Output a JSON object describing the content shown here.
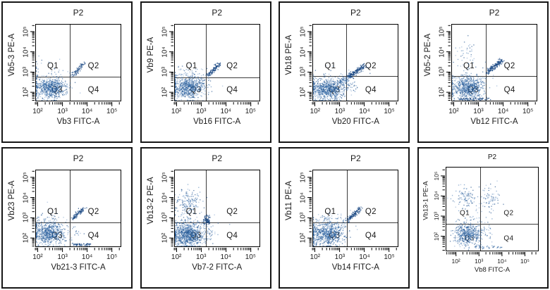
{
  "window": {
    "background": "#ffffff",
    "panel_border_color": "#161616",
    "gate_line_color": "#3c3c3c",
    "dot_color": "#2d67a8",
    "dot_color_dark": "#17467e",
    "text_color": "#1a1a1a"
  },
  "chart_data": [
    {
      "type": "scatter",
      "title": "P2",
      "xlabel": "Vb3 FITC-A",
      "ylabel": "Vb5-3 PE-A",
      "x_ticks": [
        "10²",
        "10³",
        "10⁴",
        "10⁵"
      ],
      "y_ticks": [
        "10²",
        "10³",
        "10⁴",
        "10⁵"
      ],
      "x_range_log": [
        1.9,
        5.38
      ],
      "y_range_log": [
        1.55,
        5.38
      ],
      "quadrants": [
        "Q1",
        "Q2",
        "Q3",
        "Q4"
      ],
      "gate": {
        "x_log": 3.3,
        "y_log": 2.77
      },
      "compact_style": false,
      "clusters": [
        {
          "kind": "blob",
          "name": "negative-population",
          "cx": 2.5,
          "cy": 2.18,
          "sx": 0.32,
          "sy": 0.26,
          "n": 620
        },
        {
          "kind": "blob",
          "name": "background-noise",
          "cx": 2.62,
          "cy": 2.5,
          "sx": 0.48,
          "sy": 0.42,
          "n": 55
        },
        {
          "kind": "blob",
          "name": "axis-edge-pileup",
          "cx": 1.93,
          "cy": 2.2,
          "sx": 0.035,
          "sy": 0.33,
          "n": 22
        },
        {
          "kind": "blob",
          "name": "left-edge-upper-scatter",
          "cx": 1.93,
          "cy": 3.3,
          "sx": 0.04,
          "sy": 0.35,
          "n": 10
        },
        {
          "kind": "blob",
          "name": "q1-stray-dots",
          "cx": 2.5,
          "cy": 3.1,
          "sx": 0.25,
          "sy": 0.2,
          "n": 12
        },
        {
          "kind": "streak",
          "name": "vb3-positive-streak",
          "x0": 3.38,
          "y0": 2.8,
          "x1": 3.9,
          "y1": 3.45,
          "w": 0.05,
          "n": 68,
          "dark": true
        }
      ]
    },
    {
      "type": "scatter",
      "title": "P2",
      "xlabel": "Vb16 FITC-A",
      "ylabel": "Vb9 PE-A",
      "x_ticks": [
        "10²",
        "10³",
        "10⁴",
        "10⁵"
      ],
      "y_ticks": [
        "10²",
        "10³",
        "10⁴",
        "10⁵"
      ],
      "x_range_log": [
        1.9,
        5.38
      ],
      "y_range_log": [
        1.55,
        5.38
      ],
      "quadrants": [
        "Q1",
        "Q2",
        "Q3",
        "Q4"
      ],
      "gate": {
        "x_log": 3.2,
        "y_log": 2.73
      },
      "compact_style": false,
      "clusters": [
        {
          "kind": "blob",
          "name": "negative-population",
          "cx": 2.45,
          "cy": 2.18,
          "sx": 0.32,
          "sy": 0.26,
          "n": 600
        },
        {
          "kind": "blob",
          "name": "upper-halo-scatter",
          "cx": 2.4,
          "cy": 2.8,
          "sx": 0.33,
          "sy": 0.28,
          "n": 70
        },
        {
          "kind": "blob",
          "name": "background-noise",
          "cx": 2.7,
          "cy": 2.45,
          "sx": 0.5,
          "sy": 0.4,
          "n": 50
        },
        {
          "kind": "blob",
          "name": "axis-edge-pileup",
          "cx": 1.93,
          "cy": 2.2,
          "sx": 0.035,
          "sy": 0.33,
          "n": 22
        },
        {
          "kind": "blob",
          "name": "gate-corner-dots",
          "cx": 3.05,
          "cy": 2.6,
          "sx": 0.12,
          "sy": 0.15,
          "n": 15
        },
        {
          "kind": "streak",
          "name": "vb16-positive-streak",
          "x0": 3.22,
          "y0": 2.8,
          "x1": 3.75,
          "y1": 3.4,
          "w": 0.055,
          "n": 100,
          "dark": true
        }
      ]
    },
    {
      "type": "scatter",
      "title": "P2",
      "xlabel": "Vb20 FITC-A",
      "ylabel": "Vb18 PE-A",
      "x_ticks": [
        "10²",
        "10³",
        "10⁴",
        "10⁵"
      ],
      "y_ticks": [
        "10²",
        "10³",
        "10⁴",
        "10⁵"
      ],
      "x_range_log": [
        1.9,
        5.38
      ],
      "y_range_log": [
        1.55,
        5.38
      ],
      "quadrants": [
        "Q1",
        "Q2",
        "Q3",
        "Q4"
      ],
      "gate": {
        "x_log": 3.25,
        "y_log": 2.8
      },
      "compact_style": false,
      "clusters": [
        {
          "kind": "blob",
          "name": "negative-population",
          "cx": 2.5,
          "cy": 2.12,
          "sx": 0.37,
          "sy": 0.27,
          "n": 680
        },
        {
          "kind": "blob",
          "name": "background-noise",
          "cx": 2.75,
          "cy": 2.45,
          "sx": 0.5,
          "sy": 0.4,
          "n": 60
        },
        {
          "kind": "blob",
          "name": "axis-edge-pileup",
          "cx": 1.93,
          "cy": 2.2,
          "sx": 0.035,
          "sy": 0.33,
          "n": 22
        },
        {
          "kind": "streak",
          "name": "bridge-scatter",
          "x0": 2.95,
          "y0": 2.42,
          "x1": 3.35,
          "y1": 2.72,
          "w": 0.13,
          "n": 85
        },
        {
          "kind": "streak",
          "name": "vb20-positive-streak",
          "x0": 3.35,
          "y0": 2.72,
          "x1": 4.02,
          "y1": 3.3,
          "w": 0.07,
          "n": 150,
          "dark": true
        },
        {
          "kind": "blob",
          "name": "q4-scatter",
          "cx": 3.4,
          "cy": 2.3,
          "sx": 0.2,
          "sy": 0.18,
          "n": 22
        }
      ]
    },
    {
      "type": "scatter",
      "title": "P2",
      "xlabel": "Vb12 FITC-A",
      "ylabel": "Vb5-2 PE-A",
      "x_ticks": [
        "10²",
        "10³",
        "10⁴",
        "10⁵"
      ],
      "y_ticks": [
        "10²",
        "10³",
        "10⁴",
        "10⁵"
      ],
      "x_range_log": [
        1.9,
        5.38
      ],
      "y_range_log": [
        1.55,
        5.38
      ],
      "quadrants": [
        "Q1",
        "Q2",
        "Q3",
        "Q4"
      ],
      "gate": {
        "x_log": 3.3,
        "y_log": 2.8
      },
      "compact_style": false,
      "clusters": [
        {
          "kind": "blob",
          "name": "negative-population",
          "cx": 2.55,
          "cy": 2.22,
          "sx": 0.3,
          "sy": 0.27,
          "n": 620
        },
        {
          "kind": "blob",
          "name": "background-noise",
          "cx": 2.6,
          "cy": 2.6,
          "sx": 0.45,
          "sy": 0.4,
          "n": 50
        },
        {
          "kind": "blob",
          "name": "axis-edge-pileup",
          "cx": 1.93,
          "cy": 2.2,
          "sx": 0.035,
          "sy": 0.33,
          "n": 22
        },
        {
          "kind": "blob",
          "name": "q1-sparse-cloud",
          "cx": 2.5,
          "cy": 3.85,
          "sx": 0.27,
          "sy": 0.33,
          "n": 40
        },
        {
          "kind": "streak",
          "name": "vb12-positive-streak",
          "x0": 3.35,
          "y0": 2.97,
          "x1": 3.95,
          "y1": 3.58,
          "w": 0.055,
          "n": 150,
          "dark": true
        },
        {
          "kind": "strip",
          "name": "bottom-axis-pileup",
          "x0": 2.15,
          "x1": 3.5,
          "y": 1.64,
          "n": 65,
          "dark": true
        },
        {
          "kind": "blob",
          "name": "gate-corner-dots",
          "cx": 3.15,
          "cy": 2.5,
          "sx": 0.15,
          "sy": 0.25,
          "n": 15
        }
      ]
    },
    {
      "type": "scatter",
      "title": "P2",
      "xlabel": "Vb21-3 FITC-A",
      "ylabel": "Vb23 PE-A",
      "x_ticks": [
        "10²",
        "10³",
        "10⁴",
        "10⁵"
      ],
      "y_ticks": [
        "10²",
        "10³",
        "10⁴",
        "10⁵"
      ],
      "x_range_log": [
        1.9,
        5.38
      ],
      "y_range_log": [
        1.55,
        5.38
      ],
      "quadrants": [
        "Q1",
        "Q2",
        "Q3",
        "Q4"
      ],
      "gate": {
        "x_log": 3.3,
        "y_log": 2.75
      },
      "compact_style": false,
      "clusters": [
        {
          "kind": "blob",
          "name": "negative-population",
          "cx": 2.45,
          "cy": 2.18,
          "sx": 0.32,
          "sy": 0.27,
          "n": 600
        },
        {
          "kind": "blob",
          "name": "upper-halo-scatter",
          "cx": 2.35,
          "cy": 2.75,
          "sx": 0.28,
          "sy": 0.25,
          "n": 55
        },
        {
          "kind": "blob",
          "name": "background-noise",
          "cx": 2.6,
          "cy": 2.5,
          "sx": 0.45,
          "sy": 0.4,
          "n": 45
        },
        {
          "kind": "blob",
          "name": "axis-edge-pileup",
          "cx": 1.93,
          "cy": 2.2,
          "sx": 0.035,
          "sy": 0.33,
          "n": 22
        },
        {
          "kind": "streak",
          "name": "vb21-3-positive-streak",
          "x0": 3.42,
          "y0": 2.95,
          "x1": 3.88,
          "y1": 3.48,
          "w": 0.05,
          "n": 85,
          "dark": true
        },
        {
          "kind": "strip",
          "name": "q4-bottom-axis-pileup",
          "x0": 3.35,
          "x1": 4.15,
          "y": 1.64,
          "n": 55,
          "dark": true
        },
        {
          "kind": "blob",
          "name": "q4-clump",
          "cx": 3.55,
          "cy": 2.28,
          "sx": 0.1,
          "sy": 0.1,
          "n": 10
        }
      ]
    },
    {
      "type": "scatter",
      "title": "P2",
      "xlabel": "Vb7-2 FITC-A",
      "ylabel": "Vb13-2 PE-A",
      "x_ticks": [
        "10²",
        "10³",
        "10⁴",
        "10⁵"
      ],
      "y_ticks": [
        "10²",
        "10³",
        "10⁴",
        "10⁵"
      ],
      "x_range_log": [
        1.9,
        5.38
      ],
      "y_range_log": [
        1.55,
        5.38
      ],
      "quadrants": [
        "Q1",
        "Q2",
        "Q3",
        "Q4"
      ],
      "gate": {
        "x_log": 3.2,
        "y_log": 2.77
      },
      "compact_style": false,
      "clusters": [
        {
          "kind": "blob",
          "name": "negative-population",
          "cx": 2.45,
          "cy": 2.12,
          "sx": 0.34,
          "sy": 0.29,
          "n": 850
        },
        {
          "kind": "blob",
          "name": "q1-positive-cloud",
          "cx": 2.45,
          "cy": 3.8,
          "sx": 0.26,
          "sy": 0.3,
          "n": 150
        },
        {
          "kind": "blob",
          "name": "bridge-scatter",
          "cx": 2.35,
          "cy": 3.0,
          "sx": 0.28,
          "sy": 0.3,
          "n": 45
        },
        {
          "kind": "blob",
          "name": "background-noise",
          "cx": 2.7,
          "cy": 2.4,
          "sx": 0.5,
          "sy": 0.35,
          "n": 50
        },
        {
          "kind": "blob",
          "name": "axis-edge-pileup",
          "cx": 1.93,
          "cy": 2.2,
          "sx": 0.035,
          "sy": 0.33,
          "n": 22
        },
        {
          "kind": "blob",
          "name": "gate-corner-clump",
          "cx": 3.22,
          "cy": 2.86,
          "sx": 0.08,
          "sy": 0.12,
          "n": 80,
          "dark": true
        },
        {
          "kind": "blob",
          "name": "q4-scatter",
          "cx": 3.45,
          "cy": 2.3,
          "sx": 0.18,
          "sy": 0.15,
          "n": 16
        }
      ]
    },
    {
      "type": "scatter",
      "title": "P2",
      "xlabel": "Vb14 FITC-A",
      "ylabel": "Vb11 PE-A",
      "x_ticks": [
        "10²",
        "10³",
        "10⁴",
        "10⁵"
      ],
      "y_ticks": [
        "10²",
        "10³",
        "10⁴",
        "10⁵"
      ],
      "x_range_log": [
        1.9,
        5.38
      ],
      "y_range_log": [
        1.55,
        5.38
      ],
      "quadrants": [
        "Q1",
        "Q2",
        "Q3",
        "Q4"
      ],
      "gate": {
        "x_log": 3.28,
        "y_log": 2.75
      },
      "compact_style": false,
      "clusters": [
        {
          "kind": "blob",
          "name": "negative-population",
          "cx": 2.45,
          "cy": 2.18,
          "sx": 0.34,
          "sy": 0.27,
          "n": 680
        },
        {
          "kind": "blob",
          "name": "background-noise",
          "cx": 2.65,
          "cy": 2.5,
          "sx": 0.48,
          "sy": 0.4,
          "n": 55
        },
        {
          "kind": "blob",
          "name": "axis-edge-pileup",
          "cx": 1.93,
          "cy": 2.2,
          "sx": 0.035,
          "sy": 0.33,
          "n": 22
        },
        {
          "kind": "blob",
          "name": "q1-low-scatter",
          "cx": 2.55,
          "cy": 2.95,
          "sx": 0.3,
          "sy": 0.18,
          "n": 30
        },
        {
          "kind": "streak",
          "name": "vb14-positive-streak",
          "x0": 3.35,
          "y0": 2.9,
          "x1": 3.82,
          "y1": 3.45,
          "w": 0.055,
          "n": 110,
          "dark": true
        },
        {
          "kind": "blob",
          "name": "gate-corner-dots",
          "cx": 3.2,
          "cy": 2.72,
          "sx": 0.1,
          "sy": 0.1,
          "n": 12
        }
      ]
    },
    {
      "type": "scatter",
      "title": "P2",
      "xlabel": "Vb8 FITC-A",
      "ylabel": "Vb13-1 PE-A",
      "x_ticks": [
        "10²",
        "10³",
        "10⁴",
        "10⁵"
      ],
      "y_ticks": [
        "10²",
        "10³",
        "10⁴",
        "10⁵"
      ],
      "x_range_log": [
        1.55,
        5.6
      ],
      "y_range_log": [
        1.25,
        5.45
      ],
      "quadrants": [
        "Q1",
        "Q2",
        "Q3",
        "Q4"
      ],
      "gate": {
        "x_log": 3.05,
        "y_log": 2.6
      },
      "compact_style": true,
      "clusters": [
        {
          "kind": "blob",
          "name": "negative-population",
          "cx": 2.5,
          "cy": 2.08,
          "sx": 0.3,
          "sy": 0.3,
          "n": 500
        },
        {
          "kind": "blob",
          "name": "q1-sparse-cloud",
          "cx": 2.4,
          "cy": 3.95,
          "sx": 0.25,
          "sy": 0.28,
          "n": 85
        },
        {
          "kind": "blob",
          "name": "q2-sparse-cloud",
          "cx": 3.5,
          "cy": 3.85,
          "sx": 0.22,
          "sy": 0.32,
          "n": 70
        },
        {
          "kind": "blob",
          "name": "mid-sparse-scatter",
          "cx": 2.8,
          "cy": 2.9,
          "sx": 0.5,
          "sy": 0.45,
          "n": 40
        },
        {
          "kind": "blob",
          "name": "blob-right-tail",
          "cx": 3.2,
          "cy": 2.2,
          "sx": 0.18,
          "sy": 0.25,
          "n": 30
        },
        {
          "kind": "strip",
          "name": "bottom-axis-pileup",
          "x0": 2.8,
          "x1": 4.0,
          "y": 1.42,
          "n": 40
        }
      ]
    }
  ]
}
